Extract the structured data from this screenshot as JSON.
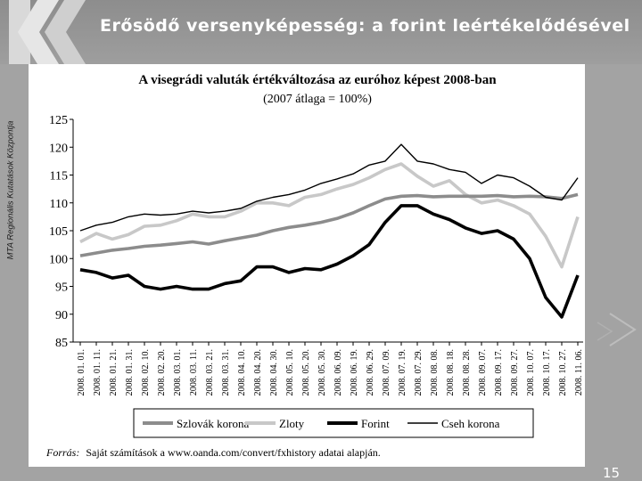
{
  "slide": {
    "title": "Erősödő versenyképesség: a forint leértékelődésével",
    "side_caption": "MTA Regionális Kutatások Központja",
    "page_number": "15"
  },
  "chart_data": {
    "type": "line",
    "title": "A visegrádi valuták értékváltozása az euróhoz képest 2008-ban",
    "subtitle": "(2007 átlaga = 100%)",
    "ylim": [
      85,
      125
    ],
    "yticks": [
      85,
      90,
      95,
      100,
      105,
      110,
      115,
      120,
      125
    ],
    "x_tick_labels": [
      "2008. 01. 01.",
      "2008. 01. 11.",
      "2008. 01. 21.",
      "2008. 01. 31.",
      "2008. 02. 10.",
      "2008. 02. 20.",
      "2008. 03. 01.",
      "2008. 03. 11.",
      "2008. 03. 21.",
      "2008. 03. 31.",
      "2008. 04. 10.",
      "2008. 04. 20.",
      "2008. 04. 30.",
      "2008. 05. 10.",
      "2008. 05. 20.",
      "2008. 05. 30.",
      "2008. 06. 09.",
      "2008. 06. 19.",
      "2008. 06. 29.",
      "2008. 07. 09.",
      "2008. 07. 19.",
      "2008. 07. 29.",
      "2008. 08. 08.",
      "2008. 08. 18.",
      "2008. 08. 28.",
      "2008. 09. 07.",
      "2008. 09. 17.",
      "2008. 09. 27.",
      "2008. 10. 07.",
      "2008. 10. 17.",
      "2008. 10. 27.",
      "2008. 11. 06."
    ],
    "x": [
      "2008-01-01",
      "2008-01-11",
      "2008-01-21",
      "2008-01-31",
      "2008-02-10",
      "2008-02-20",
      "2008-03-01",
      "2008-03-11",
      "2008-03-21",
      "2008-03-31",
      "2008-04-10",
      "2008-04-20",
      "2008-04-30",
      "2008-05-10",
      "2008-05-20",
      "2008-05-30",
      "2008-06-09",
      "2008-06-19",
      "2008-06-29",
      "2008-07-09",
      "2008-07-19",
      "2008-07-29",
      "2008-08-08",
      "2008-08-18",
      "2008-08-28",
      "2008-09-07",
      "2008-09-17",
      "2008-09-27",
      "2008-10-07",
      "2008-10-17",
      "2008-10-27",
      "2008-11-06"
    ],
    "series": [
      {
        "name": "Szlovák korona",
        "color": "#8c8c8c",
        "style": "thick",
        "values": [
          100.5,
          101.0,
          101.5,
          101.8,
          102.2,
          102.4,
          102.7,
          103.0,
          102.6,
          103.2,
          103.7,
          104.2,
          105.0,
          105.6,
          106.0,
          106.5,
          107.2,
          108.2,
          109.5,
          110.7,
          111.2,
          111.3,
          111.1,
          111.2,
          111.2,
          111.2,
          111.3,
          111.1,
          111.2,
          111.1,
          110.8,
          111.5
        ]
      },
      {
        "name": "Zloty",
        "color": "#c8c8c8",
        "style": "thick",
        "values": [
          103.0,
          104.5,
          103.5,
          104.3,
          105.8,
          106.0,
          106.8,
          108.0,
          107.5,
          107.5,
          108.5,
          110.0,
          110.0,
          109.5,
          111.0,
          111.5,
          112.5,
          113.3,
          114.5,
          116.0,
          117.0,
          114.8,
          113.0,
          114.0,
          111.5,
          110.0,
          110.5,
          109.5,
          108.0,
          104.0,
          98.5,
          107.5
        ]
      },
      {
        "name": "Forint",
        "color": "#000000",
        "style": "thick",
        "values": [
          98.0,
          97.5,
          96.5,
          97.0,
          95.0,
          94.5,
          95.0,
          94.5,
          94.5,
          95.5,
          96.0,
          98.5,
          98.5,
          97.5,
          98.2,
          98.0,
          99.0,
          100.5,
          102.5,
          106.5,
          109.5,
          109.5,
          108.0,
          107.0,
          105.5,
          104.5,
          105.0,
          103.5,
          100.0,
          93.0,
          89.5,
          97.0
        ]
      },
      {
        "name": "Cseh korona",
        "color": "#000000",
        "style": "thin",
        "values": [
          105.0,
          106.0,
          106.5,
          107.5,
          108.0,
          107.8,
          108.0,
          108.5,
          108.2,
          108.5,
          109.0,
          110.3,
          111.0,
          111.5,
          112.3,
          113.5,
          114.3,
          115.2,
          116.8,
          117.5,
          120.5,
          117.5,
          117.0,
          116.0,
          115.5,
          113.5,
          115.0,
          114.5,
          113.0,
          111.0,
          110.5,
          114.5
        ]
      }
    ],
    "legend_placement": "bottom",
    "grid": false,
    "source_label": "Forrás:",
    "source_text": "Saját számítások a www.oanda.com/convert/fxhistory adatai alapján."
  }
}
